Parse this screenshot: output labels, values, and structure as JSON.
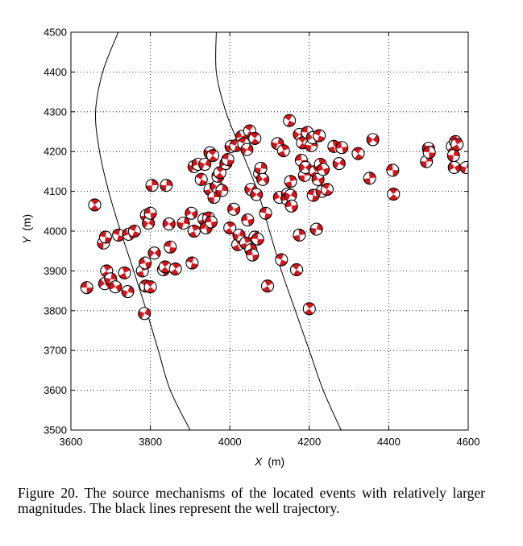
{
  "chart_data": {
    "type": "scatter",
    "marker": "focal-mechanism-beachball",
    "xlabel_var": "X",
    "xlabel_unit": "(m)",
    "ylabel_var": "Y",
    "ylabel_unit": "(m)",
    "xlim": [
      3600,
      4600
    ],
    "ylim": [
      3500,
      4500
    ],
    "xticks": [
      "3600",
      "3800",
      "4000",
      "4200",
      "4400",
      "4600"
    ],
    "yticks": [
      "3500",
      "3600",
      "3700",
      "3800",
      "3900",
      "4000",
      "4100",
      "4200",
      "4300",
      "4400",
      "4500"
    ],
    "grid": true,
    "colors": {
      "fill": "#d6141b",
      "edge": "#000000",
      "background": "#ffffff",
      "well": "#000000"
    },
    "wells": [
      {
        "points": [
          [
            3719,
            4500
          ],
          [
            3680,
            4400
          ],
          [
            3662,
            4300
          ],
          [
            3672,
            4200
          ],
          [
            3695,
            4100
          ],
          [
            3725,
            4000
          ],
          [
            3758,
            3900
          ],
          [
            3790,
            3800
          ],
          [
            3820,
            3700
          ],
          [
            3850,
            3600
          ],
          [
            3900,
            3500
          ]
        ]
      },
      {
        "points": [
          [
            3966,
            4500
          ],
          [
            3966,
            4400
          ],
          [
            3990,
            4300
          ],
          [
            4030,
            4200
          ],
          [
            4070,
            4100
          ],
          [
            4100,
            4000
          ],
          [
            4130,
            3900
          ],
          [
            4165,
            3800
          ],
          [
            4200,
            3700
          ],
          [
            4235,
            3600
          ],
          [
            4280,
            3500
          ]
        ]
      }
    ],
    "events": [
      [
        3640,
        3858
      ],
      [
        3660,
        4066
      ],
      [
        3682,
        3970
      ],
      [
        3685,
        3868
      ],
      [
        3687,
        3985
      ],
      [
        3690,
        3900
      ],
      [
        3700,
        3880
      ],
      [
        3712,
        3860
      ],
      [
        3720,
        3990
      ],
      [
        3735,
        3895
      ],
      [
        3743,
        3848
      ],
      [
        3745,
        3992
      ],
      [
        3760,
        4000
      ],
      [
        3780,
        3900
      ],
      [
        3785,
        3793
      ],
      [
        3787,
        3920
      ],
      [
        3788,
        3862
      ],
      [
        3790,
        4040
      ],
      [
        3795,
        4020
      ],
      [
        3800,
        4045
      ],
      [
        3800,
        3860
      ],
      [
        3804,
        4115
      ],
      [
        3810,
        3945
      ],
      [
        3833,
        3903
      ],
      [
        3837,
        3910
      ],
      [
        3840,
        4115
      ],
      [
        3847,
        4018
      ],
      [
        3850,
        3960
      ],
      [
        3863,
        3905
      ],
      [
        3883,
        4020
      ],
      [
        3903,
        4045
      ],
      [
        3905,
        3920
      ],
      [
        3910,
        4000
      ],
      [
        3910,
        4162
      ],
      [
        3920,
        4168
      ],
      [
        3928,
        4130
      ],
      [
        3935,
        4030
      ],
      [
        3937,
        4168
      ],
      [
        3940,
        4008
      ],
      [
        3947,
        4033
      ],
      [
        3950,
        4105
      ],
      [
        3950,
        4197
      ],
      [
        3953,
        4023
      ],
      [
        3957,
        4190
      ],
      [
        3960,
        4085
      ],
      [
        3967,
        4112
      ],
      [
        3970,
        4138
      ],
      [
        3975,
        4147
      ],
      [
        3980,
        4102
      ],
      [
        3990,
        4170
      ],
      [
        3995,
        4180
      ],
      [
        4000,
        4008
      ],
      [
        4003,
        4213
      ],
      [
        4010,
        4055
      ],
      [
        4015,
        4215
      ],
      [
        4020,
        3966
      ],
      [
        4023,
        3990
      ],
      [
        4030,
        4238
      ],
      [
        4035,
        4220
      ],
      [
        4040,
        3970
      ],
      [
        4043,
        4205
      ],
      [
        4045,
        4028
      ],
      [
        4050,
        4252
      ],
      [
        4053,
        3953
      ],
      [
        4053,
        4105
      ],
      [
        4057,
        3940
      ],
      [
        4063,
        4233
      ],
      [
        4063,
        3985
      ],
      [
        4067,
        4092
      ],
      [
        4070,
        3980
      ],
      [
        4075,
        4145
      ],
      [
        4078,
        4158
      ],
      [
        4083,
        4130
      ],
      [
        4090,
        4045
      ],
      [
        4095,
        3862
      ],
      [
        4120,
        4220
      ],
      [
        4125,
        4085
      ],
      [
        4130,
        3928
      ],
      [
        4135,
        4202
      ],
      [
        4145,
        4093
      ],
      [
        4145,
        4080
      ],
      [
        4150,
        4278
      ],
      [
        4153,
        4125
      ],
      [
        4153,
        4090
      ],
      [
        4155,
        4063
      ],
      [
        4168,
        3903
      ],
      [
        4175,
        3990
      ],
      [
        4175,
        4243
      ],
      [
        4180,
        4178
      ],
      [
        4183,
        4222
      ],
      [
        4188,
        4140
      ],
      [
        4190,
        4160
      ],
      [
        4195,
        4248
      ],
      [
        4200,
        3805
      ],
      [
        4205,
        4215
      ],
      [
        4208,
        4235
      ],
      [
        4210,
        4090
      ],
      [
        4215,
        4150
      ],
      [
        4218,
        4005
      ],
      [
        4222,
        4130
      ],
      [
        4225,
        4240
      ],
      [
        4228,
        4168
      ],
      [
        4232,
        4100
      ],
      [
        4235,
        4155
      ],
      [
        4245,
        4105
      ],
      [
        4262,
        4213
      ],
      [
        4275,
        4170
      ],
      [
        4282,
        4210
      ],
      [
        4323,
        4195
      ],
      [
        4352,
        4133
      ],
      [
        4360,
        4230
      ],
      [
        4410,
        4153
      ],
      [
        4412,
        4093
      ],
      [
        4495,
        4175
      ],
      [
        4500,
        4208
      ],
      [
        4502,
        4198
      ],
      [
        4560,
        4213
      ],
      [
        4563,
        4190
      ],
      [
        4565,
        4160
      ],
      [
        4568,
        4225
      ],
      [
        4572,
        4218
      ],
      [
        4595,
        4160
      ]
    ]
  },
  "caption": "Figure 20. The source mechanisms of the located events with relatively larger magnitudes. The black lines represent the well trajectory."
}
